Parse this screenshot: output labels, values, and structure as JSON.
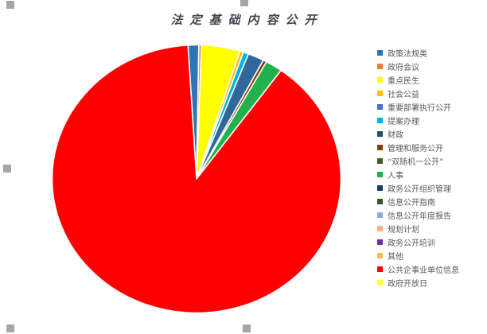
{
  "window": {
    "background": "#FFFFFF",
    "selection_handle_color": "#A5A5AD"
  },
  "chart_data": {
    "type": "pie",
    "title": "法定基础内容公开",
    "title_color": "#45464F",
    "legend_position": "right",
    "start_angle_deg": -93.4,
    "segments": [
      {
        "label": "政策法规类",
        "value": 1.2,
        "color": "#2E75B6"
      },
      {
        "label": "政府会议",
        "value": 0.3,
        "color": "#ED7D31"
      },
      {
        "label": "重点民生",
        "value": 4.3,
        "color": "#FFFF00"
      },
      {
        "label": "社会公益",
        "value": 0.4,
        "color": "#FFC000"
      },
      {
        "label": "提案办理",
        "value": 0.6,
        "color": "#00B0F0"
      },
      {
        "label": "重要部署执行公开",
        "value": 1.8,
        "color": "#31689B"
      },
      {
        "label": "管理和服务公开",
        "value": 0.4,
        "color": "#843C0C"
      },
      {
        "label": "人事",
        "value": 1.9,
        "color": "#22B14C"
      },
      {
        "label": "公共企事业单位信息",
        "value": 89.1,
        "color": "#FF0000"
      }
    ],
    "legend": [
      {
        "label": "政策法规类",
        "color": "#2E75B6"
      },
      {
        "label": "政府会议",
        "color": "#ED7D31"
      },
      {
        "label": "重点民生",
        "color": "#FFFF00"
      },
      {
        "label": "社会公益",
        "color": "#FFC000"
      },
      {
        "label": "重要部署执行公开",
        "color": "#4472C4"
      },
      {
        "label": "提案办理",
        "color": "#00B0F0"
      },
      {
        "label": "财政",
        "color": "#1F4E79"
      },
      {
        "label": "管理和服务公开",
        "color": "#843C0C"
      },
      {
        "label": "“双随机一公开”",
        "color": "#4A5823"
      },
      {
        "label": "人事",
        "color": "#22B14C"
      },
      {
        "label": "政务公开组织管理",
        "color": "#1F3864"
      },
      {
        "label": "信息公开指南",
        "color": "#375623"
      },
      {
        "label": "信息公开年度报告",
        "color": "#8FAADC"
      },
      {
        "label": "规划计划",
        "color": "#F4B183"
      },
      {
        "label": "政务公开培训",
        "color": "#7030A0"
      },
      {
        "label": "其他",
        "color": "#F0C04F"
      },
      {
        "label": "公共企事业单位信息",
        "color": "#FF0000"
      },
      {
        "label": "政府开放日",
        "color": "#FFFF33"
      }
    ]
  }
}
